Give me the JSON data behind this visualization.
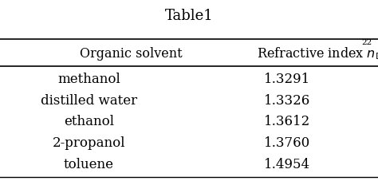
{
  "title": "Table1",
  "col1_header": "Organic solvent",
  "col2_header": "Refractive index $\\mathit{n}_{\\mathrm{D}}$",
  "col2_superscript": "22",
  "solvents": [
    "methanol",
    "distilled water",
    "ethanol",
    "2-propanol",
    "toluene"
  ],
  "indices": [
    "1.3291",
    "1.3326",
    "1.3612",
    "1.3760",
    "1.4954"
  ],
  "bg_color": "#ffffff",
  "text_color": "#000000",
  "title_fontsize": 13,
  "header_fontsize": 11.5,
  "body_fontsize": 12
}
